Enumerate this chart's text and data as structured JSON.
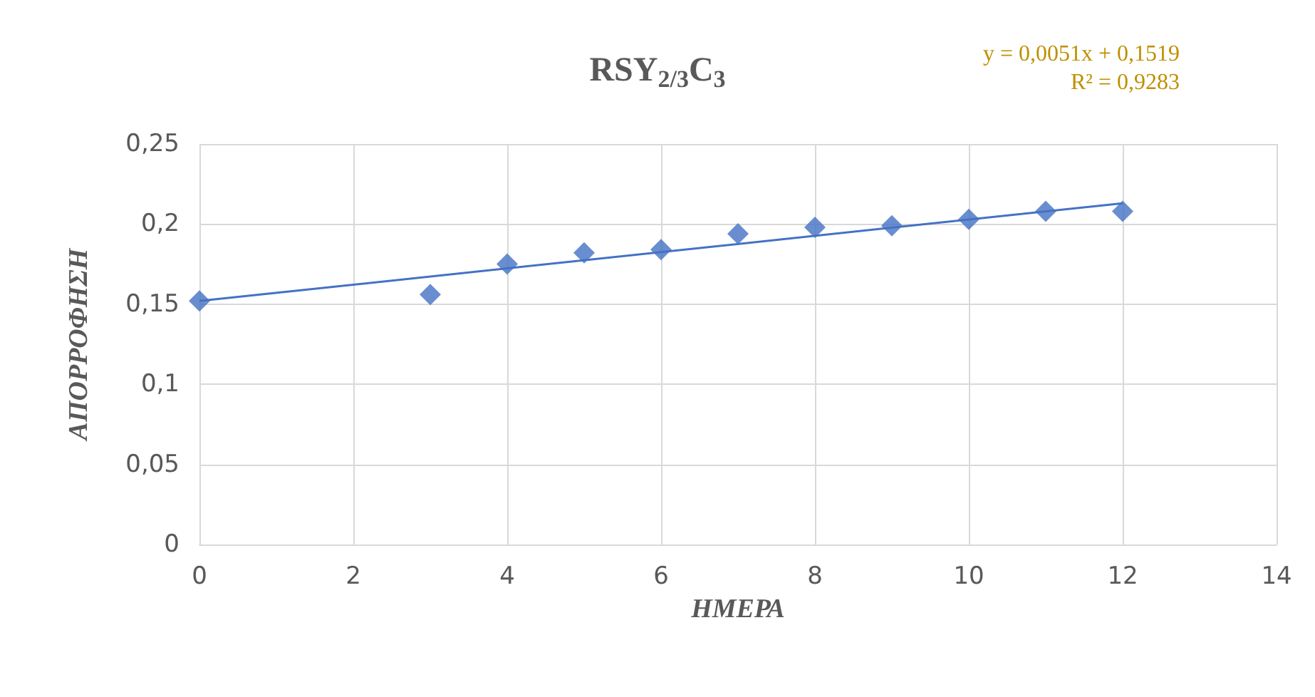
{
  "chart_data": {
    "type": "scatter",
    "title": "RSY$_{2/3}$C$_{3}$",
    "xlabel": "ΗΜΕΡΑ",
    "ylabel": "ΑΠΟΡΡΟΦΗΣΗ",
    "annotations": [
      "y = 0,0051x + 0,1519",
      "R² = 0,9283"
    ],
    "series": [
      {
        "color": "#4472c4",
        "marker": "diamond",
        "x": [
          0,
          3,
          4,
          5,
          6,
          7,
          8,
          9,
          10,
          11,
          12
        ],
        "values": [
          0.152,
          0.156,
          0.175,
          0.182,
          0.184,
          0.194,
          0.198,
          0.199,
          0.203,
          0.208,
          0.208
        ]
      },
      {
        "type": "line",
        "color": "#4472c4",
        "marker": "none",
        "x": [
          0,
          12
        ],
        "values": [
          0.152,
          0.213
        ]
      }
    ],
    "xlim": [
      0,
      14
    ],
    "xticks": [
      0,
      2,
      4,
      6,
      8,
      10,
      12,
      14
    ],
    "ylim": [
      0,
      0.25
    ],
    "yticks": [
      {
        "value": 0,
        "label": "0"
      },
      {
        "value": 0.05,
        "label": "0,05"
      },
      {
        "value": 0.1,
        "label": "0,1"
      },
      {
        "value": 0.15,
        "label": "0,15"
      },
      {
        "value": 0.2,
        "label": "0,2"
      },
      {
        "value": 0.25,
        "label": "0,25"
      }
    ],
    "grid": true
  }
}
